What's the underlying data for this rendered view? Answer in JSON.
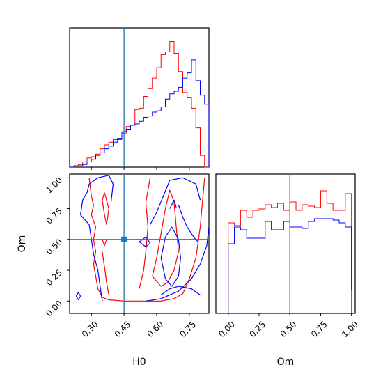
{
  "chart_data": [
    {
      "panel": "H0 marginal",
      "type": "histogram",
      "x_range": [
        0.2,
        0.84
      ],
      "truth": 0.45,
      "series": [
        {
          "color": "#ff0000",
          "bins": [
            0.2,
            0.22,
            0.24,
            0.26,
            0.28,
            0.3,
            0.32,
            0.34,
            0.36,
            0.38,
            0.4,
            0.42,
            0.44,
            0.46,
            0.48,
            0.5,
            0.52,
            0.54,
            0.56,
            0.58,
            0.6,
            0.62,
            0.64,
            0.66,
            0.68,
            0.7,
            0.72,
            0.74,
            0.76,
            0.78,
            0.8,
            0.82,
            0.84
          ],
          "heights": [
            0.0,
            0.01,
            0.02,
            0.04,
            0.07,
            0.08,
            0.1,
            0.14,
            0.17,
            0.19,
            0.21,
            0.21,
            0.26,
            0.31,
            0.32,
            0.44,
            0.45,
            0.54,
            0.6,
            0.68,
            0.76,
            0.86,
            0.88,
            0.96,
            0.87,
            0.73,
            0.57,
            0.53,
            0.45,
            0.3,
            0.09,
            0.0
          ]
        },
        {
          "color": "#0000ff",
          "bins": [
            0.2,
            0.22,
            0.24,
            0.26,
            0.28,
            0.3,
            0.32,
            0.34,
            0.36,
            0.38,
            0.4,
            0.42,
            0.44,
            0.46,
            0.48,
            0.5,
            0.52,
            0.54,
            0.56,
            0.58,
            0.6,
            0.62,
            0.64,
            0.66,
            0.68,
            0.7,
            0.72,
            0.74,
            0.76,
            0.78,
            0.8,
            0.82,
            0.84
          ],
          "heights": [
            0.0,
            0.01,
            0.01,
            0.02,
            0.04,
            0.06,
            0.09,
            0.11,
            0.14,
            0.16,
            0.19,
            0.22,
            0.27,
            0.29,
            0.32,
            0.33,
            0.35,
            0.38,
            0.39,
            0.42,
            0.43,
            0.46,
            0.52,
            0.56,
            0.58,
            0.61,
            0.68,
            0.72,
            0.82,
            0.66,
            0.55,
            0.48
          ]
        }
      ]
    },
    {
      "panel": "Om vs H0",
      "type": "contour",
      "xlabel": "H0",
      "ylabel": "Om",
      "x_range": [
        0.2,
        0.84
      ],
      "y_range": [
        -0.1,
        1.03
      ],
      "x_ticks": [
        0.3,
        0.45,
        0.6,
        0.75
      ],
      "x_tick_labels": [
        "0.30",
        "0.45",
        "0.60",
        "0.75"
      ],
      "y_ticks": [
        0.0,
        0.25,
        0.5,
        0.75,
        1.0
      ],
      "y_tick_labels": [
        "0.00",
        "0.25",
        "0.50",
        "0.75",
        "1.00"
      ],
      "truth": {
        "x": 0.45,
        "y": 0.5
      },
      "series": [
        {
          "color": "#ff0000",
          "contours": [
            [
              [
                0.29,
                1.0
              ],
              [
                0.3,
                0.85
              ],
              [
                0.31,
                0.78
              ],
              [
                0.3,
                0.7
              ],
              [
                0.32,
                0.6
              ],
              [
                0.31,
                0.5
              ],
              [
                0.32,
                0.4
              ],
              [
                0.31,
                0.3
              ],
              [
                0.32,
                0.2
              ],
              [
                0.33,
                0.1
              ],
              [
                0.35,
                0.03
              ],
              [
                0.38,
                0.01
              ],
              [
                0.45,
                0.0
              ],
              [
                0.55,
                0.0
              ],
              [
                0.62,
                0.0
              ],
              [
                0.68,
                0.02
              ],
              [
                0.72,
                0.06
              ],
              [
                0.75,
                0.18
              ],
              [
                0.78,
                0.35
              ],
              [
                0.8,
                0.6
              ],
              [
                0.81,
                0.8
              ],
              [
                0.82,
                1.0
              ]
            ],
            [
              [
                0.58,
                0.2
              ],
              [
                0.6,
                0.35
              ],
              [
                0.62,
                0.55
              ],
              [
                0.64,
                0.75
              ],
              [
                0.66,
                0.9
              ],
              [
                0.68,
                0.8
              ],
              [
                0.69,
                0.6
              ],
              [
                0.7,
                0.4
              ],
              [
                0.68,
                0.25
              ],
              [
                0.65,
                0.15
              ],
              [
                0.62,
                0.12
              ],
              [
                0.58,
                0.2
              ]
            ],
            [
              [
                0.52,
                0.1
              ],
              [
                0.54,
                0.25
              ],
              [
                0.55,
                0.4
              ],
              [
                0.56,
                0.6
              ],
              [
                0.55,
                0.8
              ],
              [
                0.57,
                1.0
              ]
            ],
            [
              [
                0.36,
                0.88
              ],
              [
                0.38,
                0.75
              ],
              [
                0.37,
                0.62
              ],
              [
                0.36,
                0.7
              ],
              [
                0.35,
                0.82
              ],
              [
                0.36,
                0.88
              ]
            ],
            [
              [
                0.35,
                0.5
              ],
              [
                0.36,
                0.45
              ],
              [
                0.37,
                0.5
              ]
            ],
            [
              [
                0.35,
                0.4
              ],
              [
                0.36,
                0.28
              ],
              [
                0.37,
                0.15
              ],
              [
                0.38,
                0.05
              ]
            ]
          ]
        },
        {
          "color": "#0000ff",
          "contours": [
            [
              [
                0.35,
                0.0
              ],
              [
                0.34,
                0.12
              ],
              [
                0.33,
                0.25
              ],
              [
                0.31,
                0.38
              ],
              [
                0.3,
                0.5
              ],
              [
                0.29,
                0.62
              ],
              [
                0.25,
                0.7
              ],
              [
                0.26,
                0.82
              ],
              [
                0.28,
                0.88
              ],
              [
                0.29,
                0.95
              ],
              [
                0.33,
                1.0
              ],
              [
                0.38,
                1.02
              ],
              [
                0.4,
                0.95
              ],
              [
                0.39,
                0.8
              ]
            ],
            [
              [
                0.55,
                0.0
              ],
              [
                0.62,
                0.02
              ],
              [
                0.7,
                0.08
              ],
              [
                0.76,
                0.18
              ],
              [
                0.8,
                0.3
              ],
              [
                0.83,
                0.45
              ],
              [
                0.84,
                0.6
              ]
            ],
            [
              [
                0.57,
                0.62
              ],
              [
                0.6,
                0.72
              ],
              [
                0.63,
                0.85
              ],
              [
                0.66,
                0.98
              ],
              [
                0.72,
                1.0
              ],
              [
                0.78,
                0.95
              ],
              [
                0.8,
                0.82
              ]
            ],
            [
              [
                0.62,
                0.35
              ],
              [
                0.64,
                0.52
              ],
              [
                0.67,
                0.6
              ],
              [
                0.7,
                0.5
              ],
              [
                0.71,
                0.35
              ],
              [
                0.7,
                0.2
              ],
              [
                0.67,
                0.12
              ],
              [
                0.64,
                0.18
              ],
              [
                0.62,
                0.35
              ]
            ],
            [
              [
                0.52,
                0.48
              ],
              [
                0.55,
                0.52
              ],
              [
                0.57,
                0.47
              ],
              [
                0.55,
                0.44
              ],
              [
                0.52,
                0.48
              ]
            ],
            [
              [
                0.66,
                0.75
              ],
              [
                0.68,
                0.82
              ],
              [
                0.69,
                0.76
              ]
            ],
            [
              [
                0.7,
                0.78
              ],
              [
                0.72,
                0.68
              ],
              [
                0.74,
                0.6
              ],
              [
                0.77,
                0.52
              ],
              [
                0.79,
                0.48
              ]
            ],
            [
              [
                0.62,
                0.05
              ],
              [
                0.66,
                0.1
              ],
              [
                0.7,
                0.12
              ],
              [
                0.76,
                0.1
              ],
              [
                0.8,
                0.05
              ]
            ],
            [
              [
                0.23,
                0.04
              ],
              [
                0.24,
                0.07
              ],
              [
                0.25,
                0.04
              ],
              [
                0.24,
                0.01
              ],
              [
                0.23,
                0.04
              ]
            ]
          ]
        }
      ]
    },
    {
      "panel": "Om marginal",
      "type": "histogram",
      "xlabel": "Om",
      "x_range": [
        -0.1,
        1.03
      ],
      "x_ticks": [
        0.0,
        0.25,
        0.5,
        0.75,
        1.0
      ],
      "x_tick_labels": [
        "0.00",
        "0.25",
        "0.50",
        "0.75",
        "1.00"
      ],
      "truth": 0.5,
      "series": [
        {
          "color": "#ff0000",
          "bins": [
            0.0,
            0.05,
            0.1,
            0.15,
            0.2,
            0.25,
            0.3,
            0.35,
            0.4,
            0.45,
            0.5,
            0.55,
            0.6,
            0.65,
            0.7,
            0.75,
            0.8,
            0.85,
            0.9,
            0.95,
            1.0
          ],
          "heights": [
            0.65,
            0.63,
            0.74,
            0.69,
            0.74,
            0.75,
            0.78,
            0.76,
            0.79,
            0.74,
            0.8,
            0.74,
            0.78,
            0.77,
            0.76,
            0.88,
            0.79,
            0.74,
            0.74,
            0.86
          ]
        },
        {
          "color": "#0000ff",
          "bins": [
            -0.1,
            -0.05,
            0.0,
            0.05,
            0.1,
            0.15,
            0.2,
            0.25,
            0.3,
            0.35,
            0.4,
            0.45,
            0.5,
            0.55,
            0.6,
            0.65,
            0.7,
            0.75,
            0.8,
            0.85,
            0.9,
            0.95,
            1.0
          ],
          "heights": [
            0.0,
            0.0,
            0.5,
            0.62,
            0.6,
            0.54,
            0.54,
            0.54,
            0.66,
            0.6,
            0.6,
            0.66,
            0.62,
            0.62,
            0.61,
            0.66,
            0.68,
            0.68,
            0.68,
            0.67,
            0.65,
            0.62,
            0.17
          ]
        }
      ]
    }
  ]
}
